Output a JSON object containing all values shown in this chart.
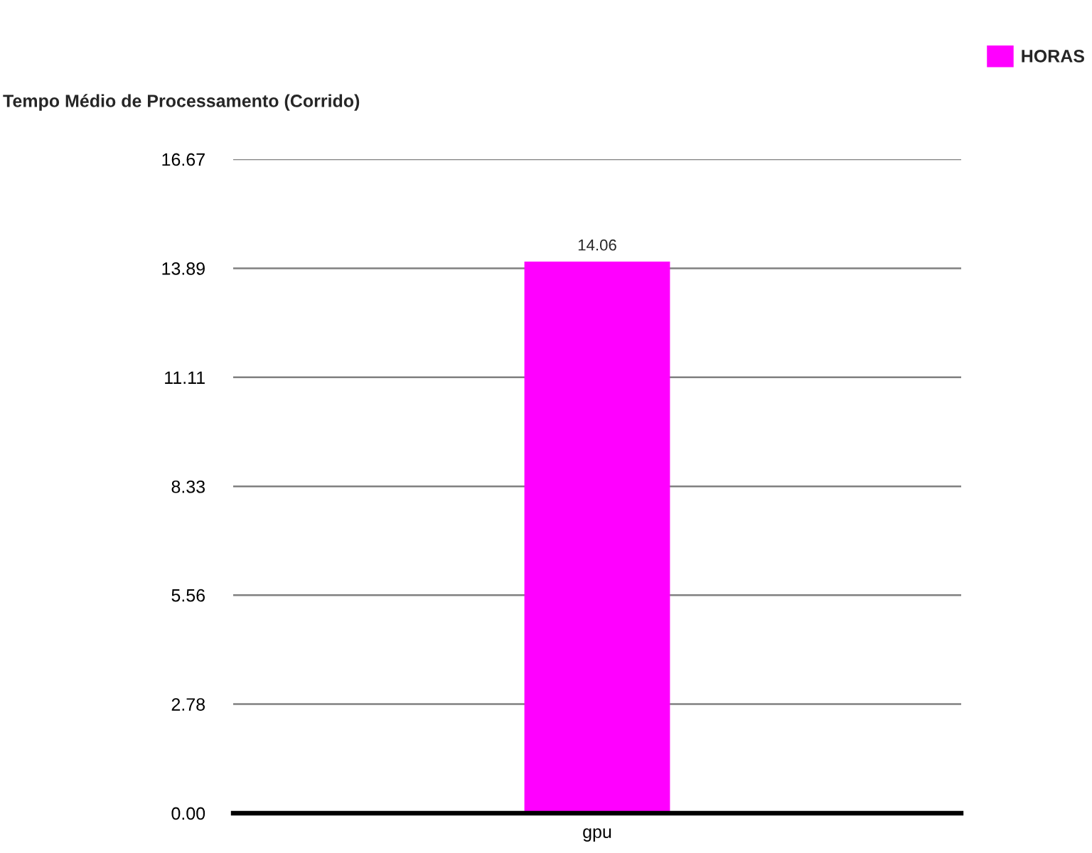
{
  "chart_data": {
    "type": "bar",
    "title": "Tempo Médio de Processamento (Corrido)",
    "categories": [
      "gpu"
    ],
    "series": [
      {
        "name": "HORAS",
        "color": "#ff00ff",
        "values": [
          14.06
        ]
      }
    ],
    "ylim": [
      0,
      16.67
    ],
    "yticks": [
      {
        "value": 0,
        "label": "0.00"
      },
      2.78,
      5.56,
      8.33,
      11.11,
      13.89,
      16.67
    ],
    "grid": "y",
    "legend": "top right",
    "data_labels": true
  }
}
